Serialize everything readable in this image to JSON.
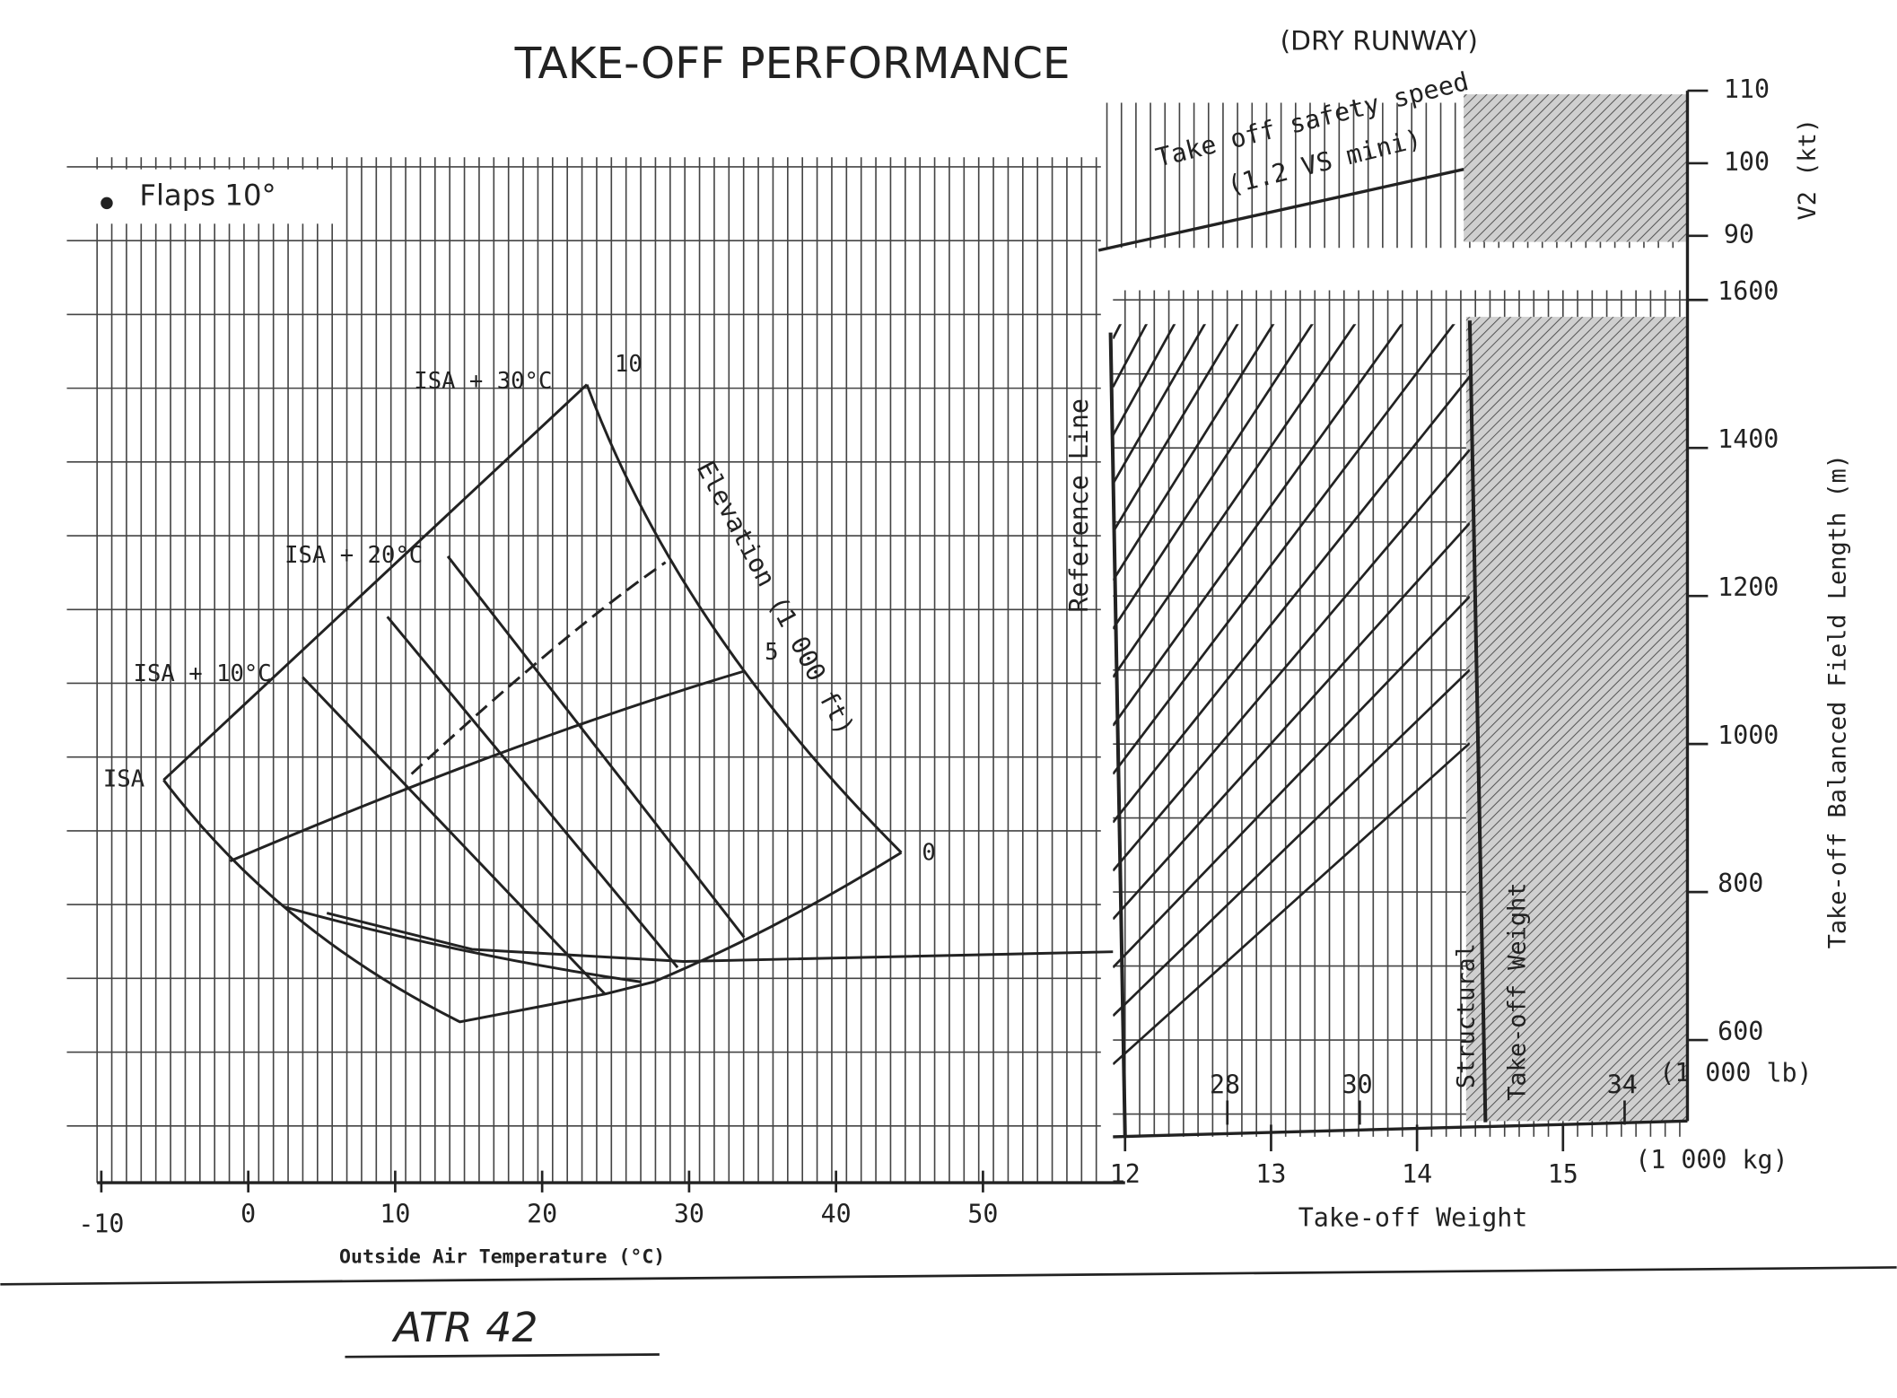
{
  "title": "TAKE-OFF PERFORMANCE",
  "subtitle": "(DRY RUNWAY)",
  "flaps": "Flaps 10°",
  "isa_labels": [
    "ISA",
    "ISA + 10°C",
    "ISA + 20°C",
    "ISA + 30°C"
  ],
  "elevation": {
    "label": "Elevation (1 000 ft)",
    "ticks": [
      0,
      5,
      10
    ]
  },
  "reference_line": "Reference Line",
  "v2": {
    "label": "Take off safety speed",
    "note": "(1.2 VS mini)",
    "axis_label": "V2 (kt)",
    "ticks": [
      90,
      100,
      110
    ]
  },
  "field_length": {
    "axis_label": "Take-off Balanced Field Length (m)",
    "ticks": [
      600,
      800,
      1000,
      1200,
      1400,
      1600
    ]
  },
  "oat": {
    "axis_label": "Outside Air Temperature (°C)",
    "ticks": [
      -10,
      0,
      10,
      20,
      30,
      40,
      50
    ]
  },
  "weight": {
    "axis_label": "Take-off Weight",
    "kg_unit": "(1 000 kg)",
    "kg_ticks": [
      12,
      13,
      14,
      15
    ],
    "lb_unit": "(1 000 lb)",
    "lb_ticks": [
      28,
      30,
      34
    ]
  },
  "limits": [
    "Structural",
    "Take-off Weight"
  ],
  "footer": "ATR 42"
}
